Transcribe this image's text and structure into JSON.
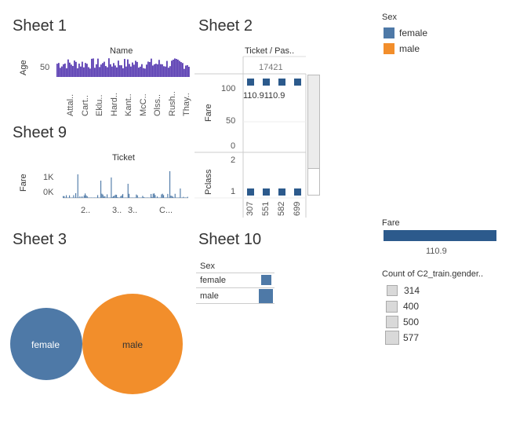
{
  "sheets": {
    "s1": {
      "title": "Sheet 1",
      "col_header": "Name",
      "ylabel": "Age",
      "ytick": "50",
      "xticks": [
        "Attal..",
        "Cart..",
        "Eklu..",
        "Hard..",
        "Kant..",
        "McC..",
        "Olss..",
        "Rush..",
        "Thay.."
      ]
    },
    "s2": {
      "title": "Sheet 2",
      "col_header": "Ticket  /  Pas..",
      "sub_header": "17421",
      "fare_label": "Fare",
      "pclass_label": "Pclass",
      "fare_ticks": [
        "100",
        "50",
        "0"
      ],
      "pclass_ticks": [
        "2",
        "1"
      ],
      "bar_label": "110.9110.9",
      "xticks": [
        "307",
        "551",
        "582",
        "699"
      ]
    },
    "s9": {
      "title": "Sheet 9",
      "col_header": "Ticket",
      "ylabel": "Fare",
      "yticks": [
        "1K",
        "0K"
      ],
      "xticks": [
        "2..",
        "3..",
        "3..",
        "C..."
      ]
    },
    "s3": {
      "title": "Sheet 3"
    },
    "s10": {
      "title": "Sheet 10",
      "header": "Sex",
      "rows": [
        "female",
        "male"
      ]
    }
  },
  "legends": {
    "sex": {
      "title": "Sex",
      "items": [
        "female",
        "male"
      ]
    },
    "fare": {
      "title": "Fare",
      "value": "110.9"
    },
    "count": {
      "title": "Count of C2_train.gender..",
      "items": [
        "314",
        "400",
        "500",
        "577"
      ]
    }
  },
  "colors": {
    "female": "#4e79a7",
    "male": "#f28e2b",
    "purple": "#5b3fb3",
    "navy": "#2c5a8c"
  },
  "chart_data": [
    {
      "type": "bar",
      "title": "Sheet 1",
      "xlabel": "Name",
      "ylabel": "Age",
      "categories": [
        "Attal..",
        "Cart..",
        "Eklu..",
        "Hard..",
        "Kant..",
        "McC..",
        "Olss..",
        "Rush..",
        "Thay.."
      ]
    },
    {
      "type": "bar",
      "title": "Sheet 9",
      "xlabel": "Ticket",
      "ylabel": "Fare",
      "categories": [
        "2..",
        "3..",
        "3..",
        "C..."
      ]
    },
    {
      "type": "scatter",
      "title": "Sheet 3",
      "series": [
        {
          "name": "female",
          "value": 314
        },
        {
          "name": "male",
          "value": 577
        }
      ]
    },
    {
      "type": "bar",
      "title": "Sheet 2",
      "categories": [
        "307",
        "551",
        "582",
        "699"
      ],
      "series": [
        {
          "name": "Fare",
          "values": [
            110.9,
            110.9,
            110.9,
            110.9
          ]
        },
        {
          "name": "Pclass",
          "values": [
            1,
            1,
            1,
            1
          ]
        }
      ],
      "ylim": [
        0,
        110.9
      ]
    }
  ]
}
